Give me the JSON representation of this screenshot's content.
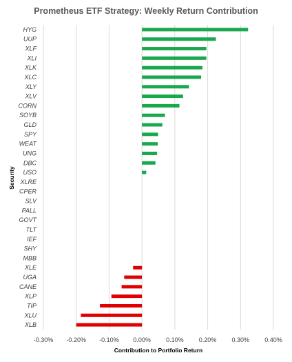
{
  "chart_data": {
    "type": "bar",
    "orientation": "horizontal",
    "title": "Prometheus ETF Strategy: Weekly Return Contribution",
    "xlabel": "Contribution to Portfolio Return",
    "ylabel": "Security",
    "xlim": [
      -0.003,
      0.004
    ],
    "x_ticks": [
      "-0.30%",
      "-0.20%",
      "-0.10%",
      "0.00%",
      "0.10%",
      "0.20%",
      "0.30%",
      "0.40%"
    ],
    "x_tick_values": [
      -0.003,
      -0.002,
      -0.001,
      0,
      0.001,
      0.002,
      0.003,
      0.004
    ],
    "grid": true,
    "legend": "none",
    "positive_color": "#1aa84f",
    "negative_color": "#e00000",
    "categories": [
      "HYG",
      "UUP",
      "XLF",
      "XLI",
      "XLK",
      "XLC",
      "XLY",
      "XLV",
      "CORN",
      "SOYB",
      "GLD",
      "SPY",
      "WEAT",
      "UNG",
      "DBC",
      "USO",
      "XLRE",
      "CPER",
      "SLV",
      "PALL",
      "GOVT",
      "TLT",
      "IEF",
      "SHY",
      "MBB",
      "XLE",
      "UGA",
      "CANE",
      "XLP",
      "TIP",
      "XLU",
      "XLB"
    ],
    "values": [
      0.00323,
      0.00225,
      0.00196,
      0.00196,
      0.00184,
      0.0018,
      0.00143,
      0.00125,
      0.00114,
      0.0007,
      0.00062,
      0.00049,
      0.00048,
      0.00046,
      0.00041,
      0.00013,
      0,
      0,
      0,
      0,
      0,
      0,
      0,
      0,
      0,
      -0.00027,
      -0.00054,
      -0.00062,
      -0.00093,
      -0.00128,
      -0.00186,
      -0.002
    ]
  }
}
